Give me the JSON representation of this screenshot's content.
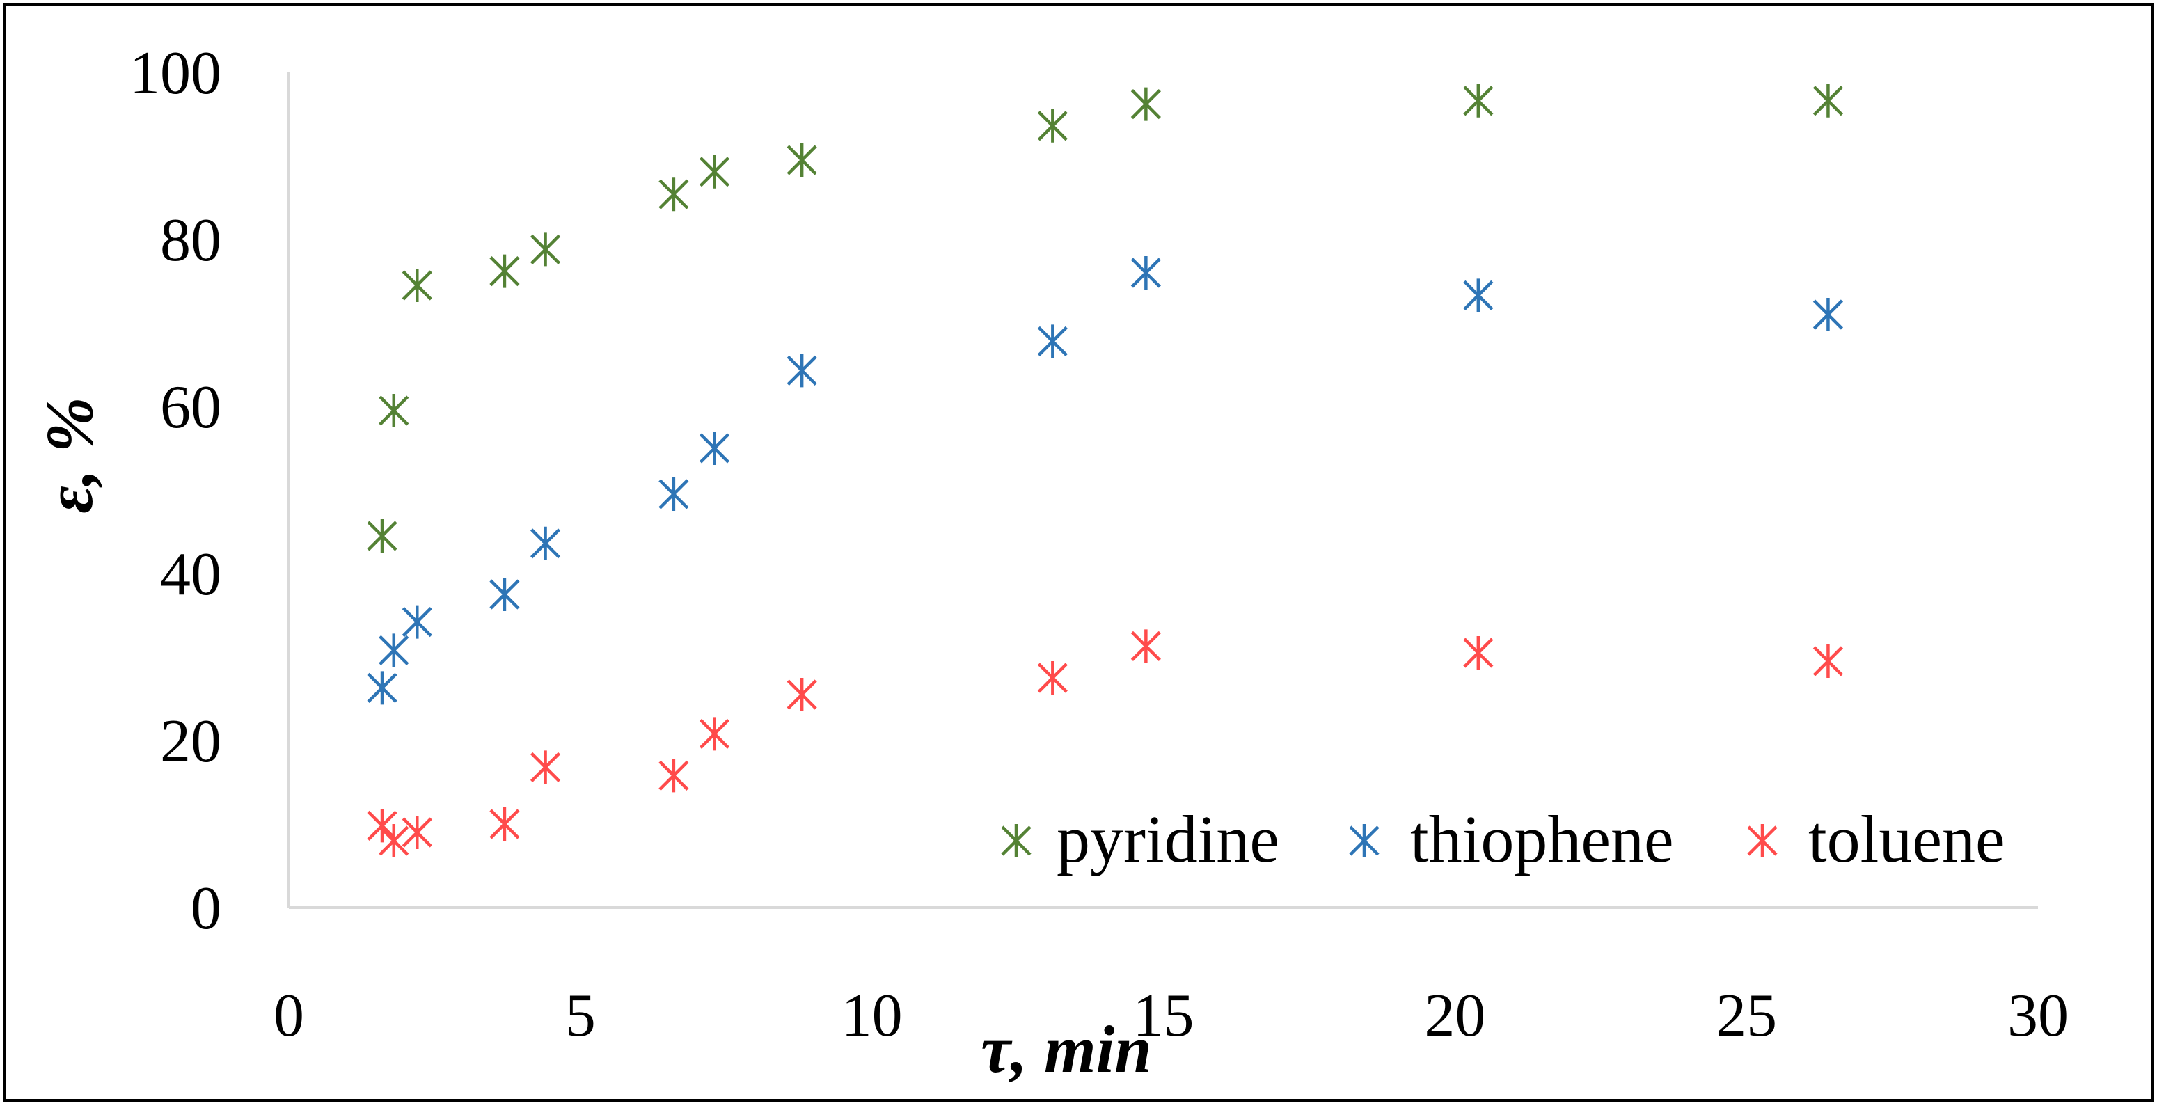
{
  "chart_data": {
    "type": "scatter",
    "title": "",
    "xlabel": "τ, min",
    "ylabel": "ε, %",
    "xlim": [
      0,
      30
    ],
    "ylim": [
      0,
      100
    ],
    "x_ticks": [
      0,
      5,
      10,
      15,
      20,
      25,
      30
    ],
    "y_ticks": [
      0,
      20,
      40,
      60,
      80,
      100
    ],
    "grid": false,
    "legend_position": "bottom-right",
    "marker": "asterisk",
    "series": [
      {
        "name": "pyridine",
        "color": "#548235",
        "x": [
          1.6,
          1.8,
          2.2,
          3.7,
          4.4,
          6.6,
          7.3,
          8.8,
          13.1,
          14.7,
          20.4,
          26.4
        ],
        "y": [
          44.5,
          59.5,
          74.5,
          76.2,
          78.8,
          85.4,
          88.1,
          89.5,
          93.6,
          96.2,
          96.6,
          96.6
        ]
      },
      {
        "name": "thiophene",
        "color": "#2E75B6",
        "x": [
          1.6,
          1.8,
          2.2,
          3.7,
          4.4,
          6.6,
          7.3,
          8.8,
          13.1,
          14.7,
          20.4,
          26.4
        ],
        "y": [
          26.3,
          30.8,
          34.2,
          37.5,
          43.6,
          49.5,
          55.0,
          64.3,
          67.8,
          76.0,
          73.3,
          71.0
        ]
      },
      {
        "name": "toluene",
        "color": "#FF4B4B",
        "x": [
          1.6,
          1.8,
          2.2,
          3.7,
          4.4,
          6.6,
          7.3,
          8.8,
          13.1,
          14.7,
          20.4,
          26.4
        ],
        "y": [
          9.8,
          8.0,
          9.0,
          10.0,
          16.8,
          15.8,
          20.8,
          25.5,
          27.5,
          31.3,
          30.5,
          29.5
        ]
      }
    ]
  }
}
